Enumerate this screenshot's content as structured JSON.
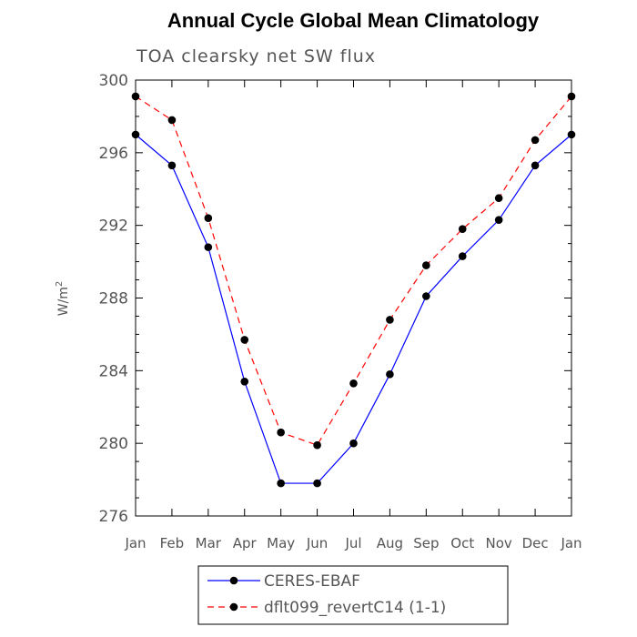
{
  "chart_data": {
    "type": "line",
    "title": "Annual Cycle Global Mean Climatology",
    "subtitle": "TOA clearsky net SW flux",
    "xlabel": "",
    "ylabel": "W/m",
    "ylabel_sup": "2",
    "categories": [
      "Jan",
      "Feb",
      "Mar",
      "Apr",
      "May",
      "Jun",
      "Jul",
      "Aug",
      "Sep",
      "Oct",
      "Nov",
      "Dec",
      "Jan"
    ],
    "ylim": [
      276,
      300
    ],
    "yticks": [
      "276",
      "280",
      "284",
      "288",
      "292",
      "296",
      "300"
    ],
    "series": [
      {
        "name": "CERES-EBAF",
        "color": "#0000ff",
        "dash": "solid",
        "values": [
          297.0,
          295.3,
          290.8,
          283.4,
          277.8,
          277.8,
          280.0,
          283.8,
          288.1,
          290.3,
          292.3,
          295.3,
          297.0
        ]
      },
      {
        "name": "dflt099_revertC14 (1-1)",
        "color": "#ff0000",
        "dash": "dashed",
        "values": [
          299.1,
          297.8,
          292.4,
          285.7,
          280.6,
          279.9,
          283.3,
          286.8,
          289.8,
          291.8,
          293.5,
          296.7,
          299.1
        ]
      }
    ]
  }
}
